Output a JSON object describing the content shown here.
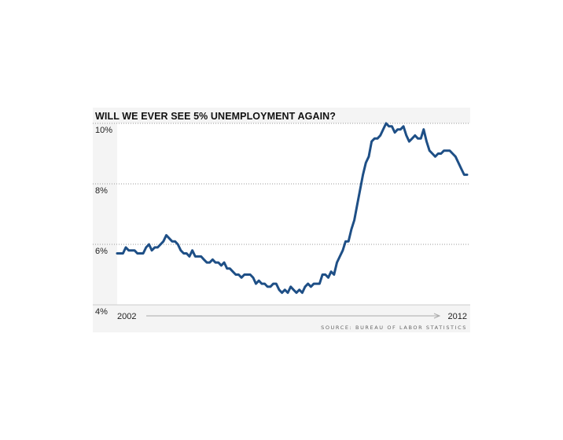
{
  "chart_data": {
    "type": "line",
    "title": "WILL WE EVER SEE 5% UNEMPLOYMENT AGAIN?",
    "source": "SOURCE: BUREAU OF LABOR STATISTICS",
    "ylim": [
      4,
      10
    ],
    "y_ticks": [
      {
        "value": 10,
        "label": "10%"
      },
      {
        "value": 8,
        "label": "8%"
      },
      {
        "value": 6,
        "label": "6%"
      },
      {
        "value": 4,
        "label": "4%"
      }
    ],
    "x_labels": {
      "start": "2002",
      "end": "2012"
    },
    "series": [
      {
        "color": "#1e4f86",
        "values": [
          5.7,
          5.7,
          5.7,
          5.9,
          5.8,
          5.8,
          5.8,
          5.7,
          5.7,
          5.7,
          5.9,
          6.0,
          5.8,
          5.9,
          5.9,
          6.0,
          6.1,
          6.3,
          6.2,
          6.1,
          6.1,
          6.0,
          5.8,
          5.7,
          5.7,
          5.6,
          5.8,
          5.6,
          5.6,
          5.6,
          5.5,
          5.4,
          5.4,
          5.5,
          5.4,
          5.4,
          5.3,
          5.4,
          5.2,
          5.2,
          5.1,
          5.0,
          5.0,
          4.9,
          5.0,
          5.0,
          5.0,
          4.9,
          4.7,
          4.8,
          4.7,
          4.7,
          4.6,
          4.6,
          4.7,
          4.7,
          4.5,
          4.4,
          4.5,
          4.4,
          4.6,
          4.5,
          4.4,
          4.5,
          4.4,
          4.6,
          4.7,
          4.6,
          4.7,
          4.7,
          4.7,
          5.0,
          5.0,
          4.9,
          5.1,
          5.0,
          5.4,
          5.6,
          5.8,
          6.1,
          6.1,
          6.5,
          6.8,
          7.3,
          7.8,
          8.3,
          8.7,
          8.9,
          9.4,
          9.5,
          9.5,
          9.6,
          9.8,
          10.0,
          9.9,
          9.9,
          9.7,
          9.8,
          9.8,
          9.9,
          9.6,
          9.4,
          9.5,
          9.6,
          9.5,
          9.5,
          9.8,
          9.4,
          9.1,
          9.0,
          8.9,
          9.0,
          9.0,
          9.1,
          9.1,
          9.1,
          9.0,
          8.9,
          8.7,
          8.5,
          8.3,
          8.3
        ]
      }
    ]
  }
}
